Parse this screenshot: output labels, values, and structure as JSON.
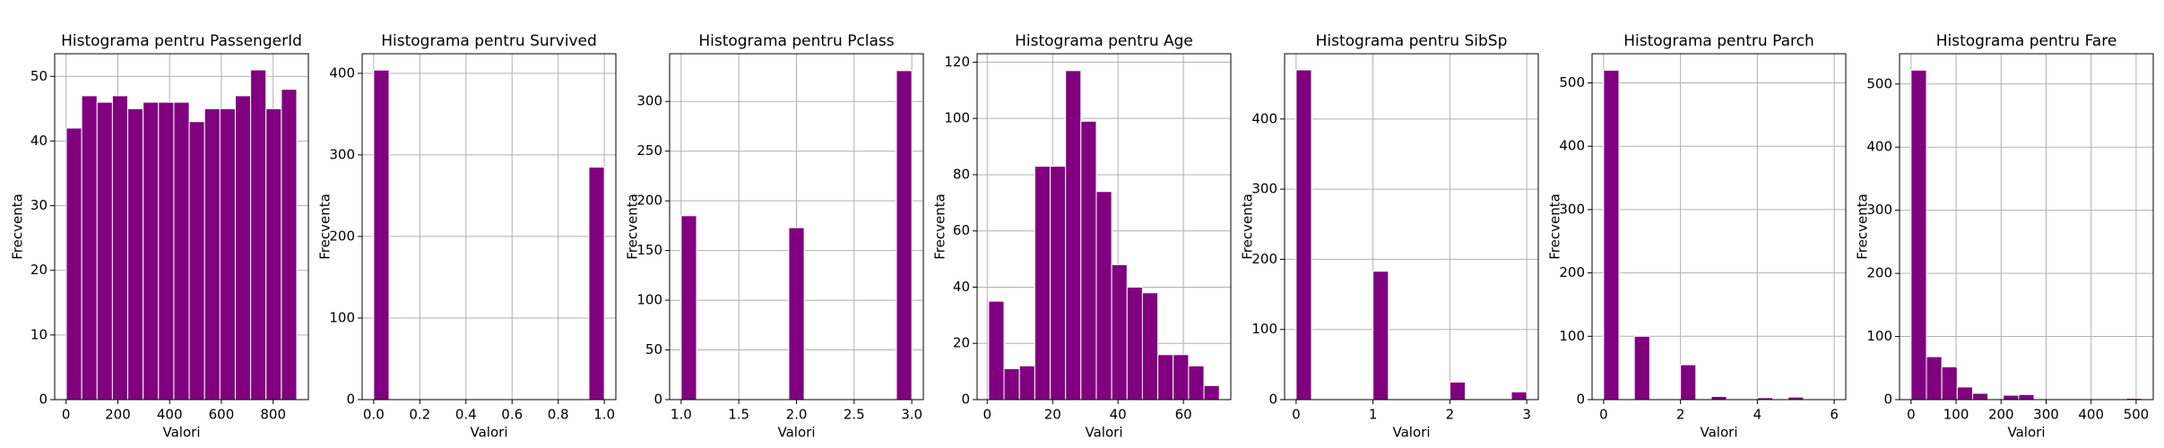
{
  "chart_data": [
    {
      "type": "histogram",
      "title": "Histograma pentru PassengerId",
      "xlabel": "Valori",
      "ylabel": "Frecventa",
      "color": "#800080",
      "grid": true,
      "bins": [
        1,
        60.3,
        119.7,
        179,
        238.3,
        297.7,
        357,
        416.3,
        475.7,
        535,
        594.3,
        653.7,
        713,
        772.3,
        831.7,
        891
      ],
      "counts": [
        42,
        47,
        46,
        47,
        45,
        46,
        46,
        46,
        43,
        45,
        45,
        47,
        51,
        45,
        48
      ],
      "xlim": [
        -44,
        936
      ],
      "ylim": [
        0,
        53.5
      ],
      "xticks": [
        0,
        200,
        400,
        600,
        800
      ],
      "yticks": [
        0,
        10,
        20,
        30,
        40,
        50
      ]
    },
    {
      "type": "histogram",
      "title": "Histograma pentru Survived",
      "xlabel": "Valori",
      "ylabel": "Frecventa",
      "color": "#800080",
      "grid": true,
      "bins": [
        0,
        0.0667,
        0.1333,
        0.2,
        0.2667,
        0.3333,
        0.4,
        0.4667,
        0.5333,
        0.6,
        0.6667,
        0.7333,
        0.8,
        0.8667,
        0.9333,
        1
      ],
      "counts": [
        404,
        0,
        0,
        0,
        0,
        0,
        0,
        0,
        0,
        0,
        0,
        0,
        0,
        0,
        285
      ],
      "xlim": [
        -0.05,
        1.05
      ],
      "ylim": [
        0,
        424
      ],
      "xticks": [
        {
          "value": 0,
          "label": "0.0"
        },
        0.2,
        0.4,
        0.6,
        0.8,
        {
          "value": 1,
          "label": "1.0"
        }
      ],
      "yticks": [
        0,
        100,
        200,
        300,
        400
      ]
    },
    {
      "type": "histogram",
      "title": "Histograma pentru Pclass",
      "xlabel": "Valori",
      "ylabel": "Frecventa",
      "color": "#800080",
      "grid": true,
      "bins": [
        1,
        1.1333,
        1.2667,
        1.4,
        1.5333,
        1.6667,
        1.8,
        1.9333,
        2.0667,
        2.2,
        2.3333,
        2.4667,
        2.6,
        2.7333,
        2.8667,
        3
      ],
      "counts": [
        185,
        0,
        0,
        0,
        0,
        0,
        0,
        173,
        0,
        0,
        0,
        0,
        0,
        0,
        331
      ],
      "xlim": [
        0.9,
        3.1
      ],
      "ylim": [
        0,
        348
      ],
      "xticks": [
        {
          "value": 1,
          "label": "1.0"
        },
        1.5,
        {
          "value": 2,
          "label": "2.0"
        },
        2.5,
        {
          "value": 3,
          "label": "3.0"
        }
      ],
      "yticks": [
        0,
        50,
        100,
        150,
        200,
        250,
        300
      ]
    },
    {
      "type": "histogram",
      "title": "Histograma pentru Age",
      "xlabel": "Valori",
      "ylabel": "Frecventa",
      "color": "#800080",
      "grid": true,
      "bins": [
        0.42,
        5.13,
        9.83,
        14.54,
        19.24,
        23.95,
        28.65,
        33.36,
        38.06,
        42.77,
        47.47,
        52.18,
        56.88,
        61.59,
        66.29,
        71
      ],
      "counts": [
        35,
        11,
        12,
        83,
        83,
        117,
        99,
        74,
        48,
        40,
        38,
        16,
        16,
        12,
        5
      ],
      "xlim": [
        -3.1,
        74.5
      ],
      "ylim": [
        0,
        123
      ],
      "xticks": [
        0,
        20,
        40,
        60
      ],
      "yticks": [
        0,
        20,
        40,
        60,
        80,
        100,
        120
      ]
    },
    {
      "type": "histogram",
      "title": "Histograma pentru SibSp",
      "xlabel": "Valori",
      "ylabel": "Frecventa",
      "color": "#800080",
      "grid": true,
      "bins": [
        0,
        0.2,
        0.4,
        0.6,
        0.8,
        1,
        1.2,
        1.4,
        1.6,
        1.8,
        2,
        2.2,
        2.4,
        2.6,
        2.8,
        3
      ],
      "counts": [
        470,
        0,
        0,
        0,
        0,
        183,
        0,
        0,
        0,
        0,
        25,
        0,
        0,
        0,
        11
      ],
      "xlim": [
        -0.15,
        3.15
      ],
      "ylim": [
        0,
        493
      ],
      "xticks": [
        0,
        1,
        2,
        3
      ],
      "yticks": [
        0,
        100,
        200,
        300,
        400
      ]
    },
    {
      "type": "histogram",
      "title": "Histograma pentru Parch",
      "xlabel": "Valori",
      "ylabel": "Frecventa",
      "color": "#800080",
      "grid": true,
      "bins": [
        0,
        0.4,
        0.8,
        1.2,
        1.6,
        2,
        2.4,
        2.8,
        3.2,
        3.6,
        4,
        4.4,
        4.8,
        5.2,
        5.6,
        6
      ],
      "counts": [
        520,
        0,
        100,
        0,
        0,
        55,
        0,
        5,
        0,
        0,
        3,
        0,
        4,
        0,
        1
      ],
      "xlim": [
        -0.3,
        6.3
      ],
      "ylim": [
        0,
        546
      ],
      "xticks": [
        0,
        2,
        4,
        6
      ],
      "yticks": [
        0,
        100,
        200,
        300,
        400,
        500
      ]
    },
    {
      "type": "histogram",
      "title": "Histograma pentru Fare",
      "xlabel": "Valori",
      "ylabel": "Frecventa",
      "color": "#800080",
      "grid": true,
      "bins": [
        0,
        34.16,
        68.31,
        102.47,
        136.62,
        170.78,
        204.93,
        239.09,
        273.24,
        307.4,
        341.55,
        375.71,
        409.86,
        444.02,
        478.17,
        512.33
      ],
      "counts": [
        522,
        68,
        52,
        20,
        10,
        0,
        7,
        8,
        0,
        0,
        0,
        0,
        0,
        0,
        2
      ],
      "xlim": [
        -25.6,
        538
      ],
      "ylim": [
        0,
        548
      ],
      "xticks": [
        0,
        100,
        200,
        300,
        400,
        500
      ],
      "yticks": [
        0,
        100,
        200,
        300,
        400,
        500
      ]
    }
  ]
}
